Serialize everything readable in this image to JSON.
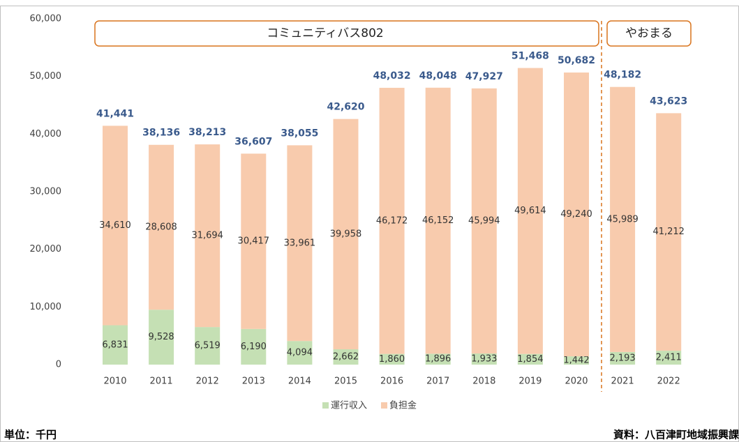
{
  "chart_data": {
    "type": "stacked_bar",
    "categories": [
      "2010",
      "2011",
      "2012",
      "2013",
      "2014",
      "2015",
      "2016",
      "2017",
      "2018",
      "2019",
      "2020",
      "2021",
      "2022"
    ],
    "series": [
      {
        "name": "運行収入",
        "color": "#c5e0b4",
        "values": [
          6831,
          9528,
          6519,
          6190,
          4094,
          2662,
          1860,
          1896,
          1933,
          1854,
          1442,
          2193,
          2411
        ],
        "value_labels": [
          "6,831",
          "9,528",
          "6,519",
          "6,190",
          "4,094",
          "2,662",
          "1,860",
          "1,896",
          "1,933",
          "1,854",
          "1,442",
          "2,193",
          "2,411"
        ]
      },
      {
        "name": "負担金",
        "color": "#f8cbad",
        "values": [
          34610,
          28608,
          31694,
          30417,
          33961,
          39958,
          46172,
          46152,
          45994,
          49614,
          49240,
          45989,
          41212
        ],
        "value_labels": [
          "34,610",
          "28,608",
          "31,694",
          "30,417",
          "33,961",
          "39,958",
          "46,172",
          "46,152",
          "45,994",
          "49,614",
          "49,240",
          "45,989",
          "41,212"
        ]
      }
    ],
    "totals": [
      41441,
      38136,
      38213,
      36607,
      38055,
      42620,
      48032,
      48048,
      47927,
      51468,
      50682,
      48182,
      43623
    ],
    "total_labels": [
      "41,441",
      "38,136",
      "38,213",
      "36,607",
      "38,055",
      "42,620",
      "48,032",
      "48,048",
      "47,927",
      "51,468",
      "50,682",
      "48,182",
      "43,623"
    ],
    "ylim": [
      0,
      60000
    ],
    "yticks": [
      0,
      {
        "value": 10000,
        "label": "10,000"
      },
      {
        "value": 20000,
        "label": "20,000"
      },
      {
        "value": 30000,
        "label": "30,000"
      },
      {
        "value": 40000,
        "label": "40,000"
      },
      {
        "value": 50000,
        "label": "50,000"
      },
      {
        "value": 60000,
        "label": "60,000"
      }
    ],
    "annotations": [
      {
        "text": "コミュニティバス802"
      },
      {
        "text": "やおまる"
      }
    ],
    "unit_note": "単位：千円",
    "source_note": "資料：八百津町地域振興課"
  }
}
